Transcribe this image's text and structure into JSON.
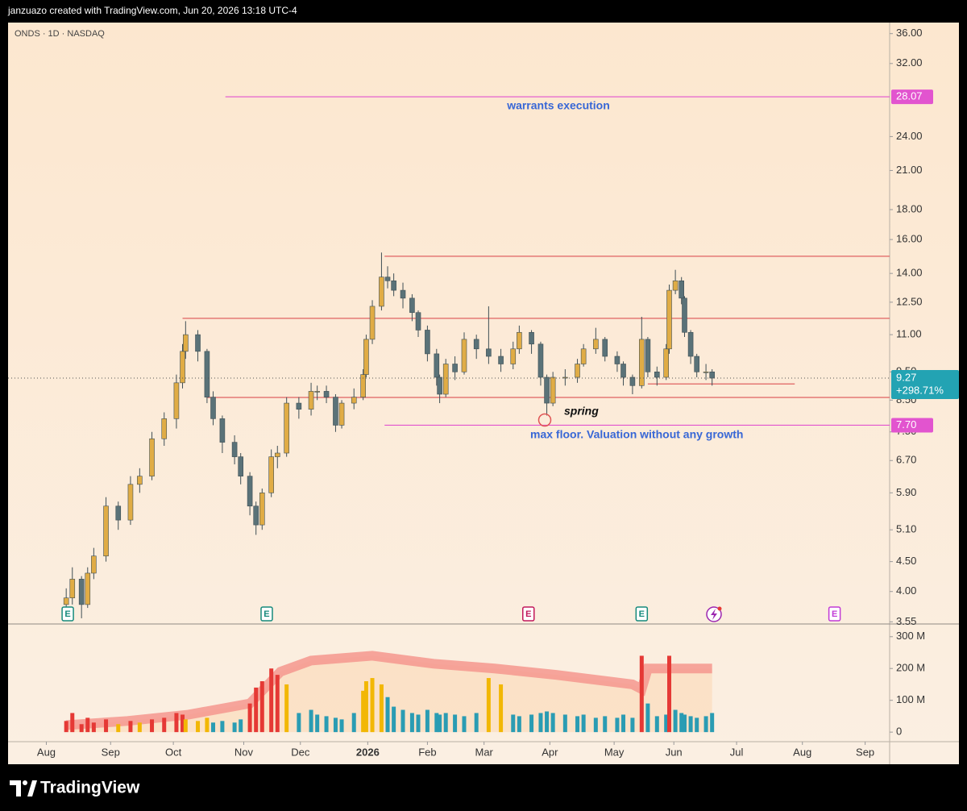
{
  "header": {
    "attribution": "janzuazo created with TradingView.com, Jun 20, 2026 13:18 UTC-4"
  },
  "footer": {
    "brand": "TradingView"
  },
  "annotations": [
    "warrants execution",
    "spring",
    "max floor. Valuation without any growth"
  ],
  "chart_data": {
    "type": "candlestick",
    "title": "ONDS · 1D · NASDAQ",
    "x": [
      0,
      2,
      5,
      7,
      9,
      13,
      17,
      21,
      24,
      28,
      32,
      36,
      38,
      39,
      43,
      46,
      48,
      51,
      55,
      57,
      60,
      62,
      64,
      67,
      69,
      72,
      76,
      80,
      82,
      85,
      88,
      90,
      94,
      97,
      98,
      100,
      103,
      105,
      107,
      110,
      113,
      115,
      118,
      121,
      122,
      124,
      127,
      130,
      134,
      138,
      142,
      146,
      148,
      152,
      155,
      157,
      159,
      163,
      167,
      169,
      173,
      176,
      180,
      182,
      185,
      188,
      190,
      193,
      196,
      197,
      199,
      201,
      202,
      204,
      206,
      209,
      211
    ],
    "open": [
      3.8,
      3.9,
      4.2,
      3.8,
      4.3,
      4.6,
      5.6,
      5.3,
      6.1,
      6.3,
      7.3,
      7.9,
      9.1,
      10.3,
      11.0,
      10.3,
      8.6,
      7.9,
      7.2,
      6.8,
      6.3,
      5.6,
      5.2,
      5.9,
      6.8,
      6.9,
      8.4,
      8.2,
      8.8,
      8.8,
      8.6,
      7.7,
      8.4,
      8.6,
      9.4,
      10.8,
      12.3,
      13.8,
      13.6,
      13.1,
      12.7,
      12.0,
      11.2,
      10.2,
      9.3,
      8.7,
      9.8,
      9.5,
      10.8,
      10.4,
      10.1,
      9.8,
      10.4,
      11.1,
      10.6,
      9.3,
      8.4,
      9.3,
      9.3,
      9.8,
      10.4,
      10.8,
      10.1,
      9.8,
      9.3,
      9.0,
      10.8,
      9.5,
      9.3,
      10.4,
      13.1,
      13.6,
      12.7,
      11.1,
      10.1,
      9.5,
      9.5
    ],
    "high": [
      4.05,
      4.4,
      4.25,
      4.4,
      4.75,
      5.8,
      5.7,
      6.3,
      6.5,
      7.5,
      8.1,
      9.4,
      10.6,
      11.6,
      11.2,
      10.4,
      8.8,
      8.0,
      7.4,
      6.9,
      6.4,
      5.7,
      6.0,
      7.0,
      7.1,
      8.6,
      8.6,
      9.1,
      9.0,
      9.0,
      8.7,
      8.5,
      8.9,
      9.6,
      11.0,
      12.6,
      15.2,
      14.4,
      14.0,
      13.5,
      12.9,
      12.1,
      11.4,
      10.4,
      9.4,
      10.0,
      10.1,
      11.1,
      11.0,
      12.3,
      10.4,
      10.7,
      11.4,
      11.2,
      10.7,
      9.4,
      9.5,
      9.6,
      10.0,
      10.6,
      11.3,
      10.9,
      10.3,
      9.9,
      9.4,
      11.8,
      10.9,
      9.7,
      10.6,
      13.4,
      14.2,
      13.8,
      12.8,
      11.2,
      10.2,
      9.8,
      9.6
    ],
    "low": [
      3.65,
      3.8,
      3.6,
      3.75,
      4.2,
      4.5,
      5.1,
      5.2,
      5.9,
      6.2,
      7.1,
      7.6,
      8.9,
      10.0,
      9.9,
      8.4,
      7.7,
      6.9,
      6.6,
      6.1,
      5.4,
      5.0,
      5.1,
      5.8,
      6.5,
      6.8,
      7.9,
      8.0,
      8.5,
      8.4,
      7.5,
      7.6,
      8.2,
      8.5,
      9.3,
      10.6,
      12.1,
      13.2,
      12.8,
      12.2,
      11.6,
      10.9,
      9.9,
      9.0,
      8.4,
      8.6,
      9.2,
      9.4,
      10.0,
      9.8,
      9.5,
      9.6,
      10.2,
      10.2,
      9.0,
      8.0,
      8.3,
      9.0,
      9.1,
      9.7,
      10.2,
      9.9,
      9.5,
      9.0,
      8.7,
      8.9,
      9.3,
      9.0,
      9.2,
      10.2,
      12.9,
      12.4,
      10.9,
      9.8,
      9.3,
      9.2,
      9.0
    ],
    "close": [
      3.9,
      4.2,
      3.8,
      4.3,
      4.6,
      5.6,
      5.3,
      6.1,
      6.3,
      7.3,
      7.9,
      9.1,
      10.3,
      11.0,
      10.3,
      8.6,
      7.9,
      7.2,
      6.8,
      6.3,
      5.6,
      5.2,
      5.9,
      6.8,
      6.9,
      8.4,
      8.2,
      8.8,
      8.8,
      8.6,
      7.7,
      8.4,
      8.6,
      9.4,
      10.8,
      12.3,
      13.8,
      13.6,
      13.1,
      12.7,
      12.0,
      11.2,
      10.2,
      9.3,
      8.7,
      9.8,
      9.5,
      10.8,
      10.4,
      10.1,
      9.8,
      10.4,
      11.1,
      10.6,
      9.3,
      8.4,
      9.3,
      9.3,
      9.8,
      10.4,
      10.8,
      10.1,
      9.8,
      9.3,
      9.0,
      10.8,
      9.5,
      9.3,
      10.4,
      13.1,
      13.6,
      12.7,
      11.1,
      10.1,
      9.5,
      9.5,
      9.27
    ],
    "up_color": "#e0ac45",
    "down_color": "#5a7278",
    "xlim": [
      -19,
      269
    ],
    "xticks": [
      {
        "value": -6.5,
        "label": "Aug"
      },
      {
        "value": 14.5,
        "label": "Sep"
      },
      {
        "value": 35,
        "label": "Oct"
      },
      {
        "value": 58,
        "label": "Nov"
      },
      {
        "value": 76.5,
        "label": "Dec"
      },
      {
        "value": 98.5,
        "label": "2026"
      },
      {
        "value": 118,
        "label": "Feb"
      },
      {
        "value": 136.5,
        "label": "Mar"
      },
      {
        "value": 158,
        "label": "Apr"
      },
      {
        "value": 179,
        "label": "May"
      },
      {
        "value": 198.5,
        "label": "Jun"
      },
      {
        "value": 219,
        "label": "Jul"
      },
      {
        "value": 240.5,
        "label": "Aug"
      },
      {
        "value": 261,
        "label": "Sep"
      }
    ],
    "ylim": [
      3.52,
      37.6
    ],
    "log_scale": true,
    "yticks": [
      {
        "value": 36,
        "label": "36.00"
      },
      {
        "value": 32,
        "label": "32.00"
      },
      {
        "value": 24,
        "label": "24.00"
      },
      {
        "value": 21,
        "label": "21.00"
      },
      {
        "value": 18,
        "label": "18.00"
      },
      {
        "value": 16,
        "label": "16.00"
      },
      {
        "value": 14,
        "label": "14.00"
      },
      {
        "value": 12.5,
        "label": "12.50"
      },
      {
        "value": 11,
        "label": "11.00"
      },
      {
        "value": 9.5,
        "label": "9.50"
      },
      {
        "value": 8.5,
        "label": "8.50"
      },
      {
        "value": 7.5,
        "label": "7.50"
      },
      {
        "value": 6.7,
        "label": "6.70"
      },
      {
        "value": 5.9,
        "label": "5.90"
      },
      {
        "value": 5.1,
        "label": "5.10"
      },
      {
        "value": 4.5,
        "label": "4.50"
      },
      {
        "value": 4,
        "label": "4.00"
      },
      {
        "value": 3.55,
        "label": "3.55"
      }
    ],
    "levels": [
      {
        "value": 28.07,
        "label": "28.07",
        "color": "#e254cf",
        "from": 52
      },
      {
        "value": 14.98,
        "color": "#e06262",
        "from": 104
      },
      {
        "value": 11.73,
        "color": "#e06262",
        "from": 38
      },
      {
        "value": 8.59,
        "color": "#e06262",
        "from": 46
      },
      {
        "value": 7.7,
        "label": "7.70",
        "color": "#e254cf",
        "from": 104
      },
      {
        "value": 9.06,
        "color": "#e06262",
        "from": 190,
        "to": 238
      }
    ],
    "last_change": {
      "value": 298.71,
      "label": "+298.71%"
    },
    "last_color": "#23a3b3",
    "events": [
      {
        "x": 0.5,
        "label": "E",
        "color": "#168a7c"
      },
      {
        "x": 65.5,
        "label": "E",
        "color": "#168a7c"
      },
      {
        "x": 151,
        "label": "E",
        "color": "#c2185b"
      },
      {
        "x": 188,
        "label": "E",
        "color": "#168a7c"
      },
      {
        "x": 251,
        "label": "E",
        "color": "#c13bd6"
      }
    ],
    "volume": {
      "values": [
        35,
        60,
        25,
        45,
        30,
        40,
        25,
        35,
        30,
        40,
        45,
        60,
        55,
        40,
        35,
        45,
        30,
        35,
        30,
        40,
        90,
        140,
        160,
        200,
        180,
        150,
        60,
        70,
        55,
        50,
        45,
        40,
        60,
        130,
        160,
        170,
        150,
        110,
        80,
        70,
        60,
        55,
        70,
        60,
        55,
        60,
        55,
        50,
        60,
        170,
        150,
        55,
        50,
        55,
        60,
        65,
        60,
        55,
        50,
        55,
        45,
        50,
        45,
        55,
        45,
        240,
        90,
        50,
        55,
        240,
        70,
        60,
        55,
        50,
        45,
        50,
        60
      ],
      "color": "#2a9cb3",
      "mid_color": "#f2b705",
      "high_color": "#e53935",
      "ylim": [
        -25,
        340
      ],
      "yticks": [
        0,
        {
          "value": 100,
          "label": "100 M"
        },
        {
          "value": 200,
          "label": "200 M"
        },
        {
          "value": 300,
          "label": "300 M"
        }
      ],
      "ma": {
        "x": [
          0,
          20,
          40,
          60,
          70,
          80,
          100,
          120,
          140,
          160,
          185,
          188,
          190,
          211
        ],
        "values": [
          22,
          35,
          55,
          90,
          190,
          225,
          240,
          215,
          200,
          180,
          150,
          135,
          200,
          200
        ],
        "color": "#f4978e"
      }
    }
  }
}
